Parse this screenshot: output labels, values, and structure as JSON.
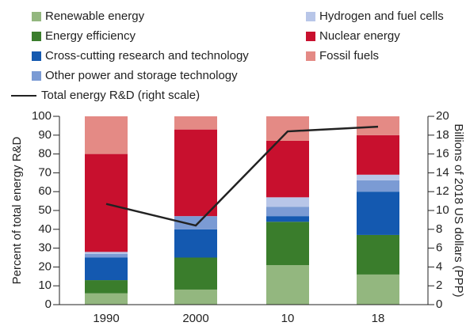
{
  "chart_data": {
    "type": "bar",
    "stacked": true,
    "categories": [
      "1990",
      "2000",
      "10",
      "18"
    ],
    "series": [
      {
        "name": "Renewable energy",
        "color": "#93b77f",
        "values": [
          6,
          8,
          21,
          16
        ]
      },
      {
        "name": "Energy efficiency",
        "color": "#3a7d2c",
        "values": [
          7,
          17,
          23,
          21
        ]
      },
      {
        "name": "Cross-cutting research and technology",
        "color": "#1459b0",
        "values": [
          12,
          15,
          3,
          23
        ]
      },
      {
        "name": "Other power and storage technology",
        "color": "#7b9bd4",
        "values": [
          2,
          7,
          5,
          6
        ]
      },
      {
        "name": "Hydrogen and fuel cells",
        "color": "#b8c6e8",
        "values": [
          1,
          0,
          5,
          3
        ]
      },
      {
        "name": "Nuclear energy",
        "color": "#c8102e",
        "values": [
          52,
          46,
          30,
          21
        ]
      },
      {
        "name": "Fossil fuels",
        "color": "#e48a85",
        "values": [
          20,
          7,
          13,
          10
        ]
      },
      {
        "name": "Total energy R&D (right scale)",
        "color": "#222222",
        "type": "line",
        "axis": "y2",
        "values": [
          10.7,
          8.4,
          18.4,
          18.9
        ]
      }
    ],
    "ylabel": "Percent of total energy R&D",
    "y2label": "Billions of 2018 US dollars (PPP)",
    "ylim": [
      0,
      100
    ],
    "yticks": [
      0,
      10,
      20,
      30,
      40,
      50,
      60,
      70,
      80,
      90,
      100
    ],
    "y2lim": [
      0,
      20
    ],
    "y2ticks": [
      0,
      2,
      4,
      6,
      8,
      10,
      12,
      14,
      16,
      18,
      20
    ]
  }
}
